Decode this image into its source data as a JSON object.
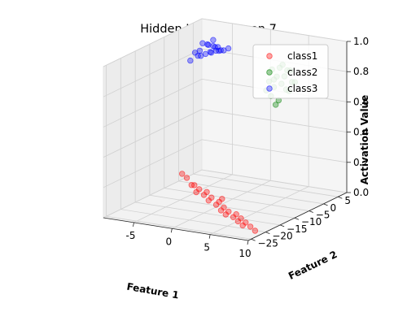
{
  "chart_data": {
    "type": "scatter",
    "projection": "3d",
    "title": "Hidden Layer Neuron 7",
    "xlabel": "Feature 1",
    "ylabel": "Feature 2",
    "zlabel": "Activation Value",
    "xlim": [
      -9,
      10
    ],
    "ylim": [
      -26,
      8
    ],
    "zlim": [
      0,
      1
    ],
    "xticks": [
      "-5",
      "0",
      "5",
      "10"
    ],
    "yticks": [
      "−25",
      "−20",
      "−15",
      "−10",
      "−5",
      "0",
      "5"
    ],
    "zticks": [
      "0.0",
      "0.2",
      "0.4",
      "0.6",
      "0.8",
      "1.0"
    ],
    "grid": true,
    "legend": "top-right",
    "series": [
      {
        "name": "class1",
        "color": "#ff0000",
        "points": [
          [
            -4,
            -12,
            0.2
          ],
          [
            -3,
            -13,
            0.19
          ],
          [
            -2,
            -14,
            0.16
          ],
          [
            -1,
            -14,
            0.14
          ],
          [
            0,
            -15,
            0.12
          ],
          [
            1,
            -16,
            0.1
          ],
          [
            2,
            -16,
            0.08
          ],
          [
            3,
            -17,
            0.06
          ],
          [
            4,
            -18,
            0.05
          ],
          [
            5,
            -18,
            0.04
          ],
          [
            6,
            -19,
            0.03
          ],
          [
            7,
            -20,
            0.02
          ],
          [
            -2,
            -13,
            0.15
          ],
          [
            0,
            -14,
            0.13
          ],
          [
            2,
            -15,
            0.09
          ],
          [
            4,
            -17,
            0.06
          ],
          [
            6,
            -18,
            0.04
          ],
          [
            8,
            -20,
            0.02
          ],
          [
            1,
            -15,
            0.11
          ],
          [
            3,
            -16,
            0.07
          ],
          [
            5,
            -17,
            0.05
          ],
          [
            -1,
            -15,
            0.13
          ],
          [
            7,
            -19,
            0.03
          ],
          [
            9,
            -21,
            0.01
          ],
          [
            2,
            -14,
            0.1
          ]
        ]
      },
      {
        "name": "class2",
        "color": "#008000",
        "points": [
          [
            4,
            -3,
            0.85
          ],
          [
            5,
            -4,
            0.82
          ],
          [
            6,
            -4,
            0.8
          ],
          [
            5,
            -2,
            0.88
          ],
          [
            6,
            -3,
            0.84
          ],
          [
            7,
            -5,
            0.78
          ],
          [
            4,
            -2,
            0.86
          ],
          [
            5,
            -5,
            0.72
          ],
          [
            6,
            -6,
            0.68
          ],
          [
            7,
            -3,
            0.81
          ],
          [
            5,
            -3,
            0.83
          ],
          [
            6,
            -2,
            0.87
          ],
          [
            7,
            -4,
            0.76
          ],
          [
            4,
            -4,
            0.74
          ],
          [
            6,
            -5,
            0.7
          ],
          [
            5,
            -1,
            0.89
          ],
          [
            7,
            -2,
            0.8
          ],
          [
            4,
            -3,
            0.79
          ],
          [
            6,
            -1,
            0.86
          ],
          [
            5,
            -4,
            0.77
          ]
        ]
      },
      {
        "name": "class3",
        "color": "#0000ff",
        "points": [
          [
            -7,
            4,
            0.82
          ],
          [
            -6,
            3,
            0.85
          ],
          [
            -6,
            4,
            0.88
          ],
          [
            -7,
            3,
            0.9
          ],
          [
            -5,
            4,
            0.86
          ],
          [
            -8,
            4,
            0.8
          ],
          [
            -6,
            5,
            0.84
          ],
          [
            -7,
            5,
            0.87
          ],
          [
            -5,
            3,
            0.89
          ],
          [
            -8,
            3,
            0.83
          ],
          [
            -6,
            2,
            0.91
          ],
          [
            -7,
            2,
            0.86
          ],
          [
            -5,
            5,
            0.85
          ],
          [
            -8,
            5,
            0.79
          ],
          [
            -6,
            4,
            0.92
          ],
          [
            -4,
            4,
            0.88
          ],
          [
            -9,
            4,
            0.76
          ],
          [
            -7,
            6,
            0.81
          ],
          [
            -5,
            2,
            0.9
          ],
          [
            -6,
            6,
            0.83
          ]
        ]
      }
    ]
  }
}
